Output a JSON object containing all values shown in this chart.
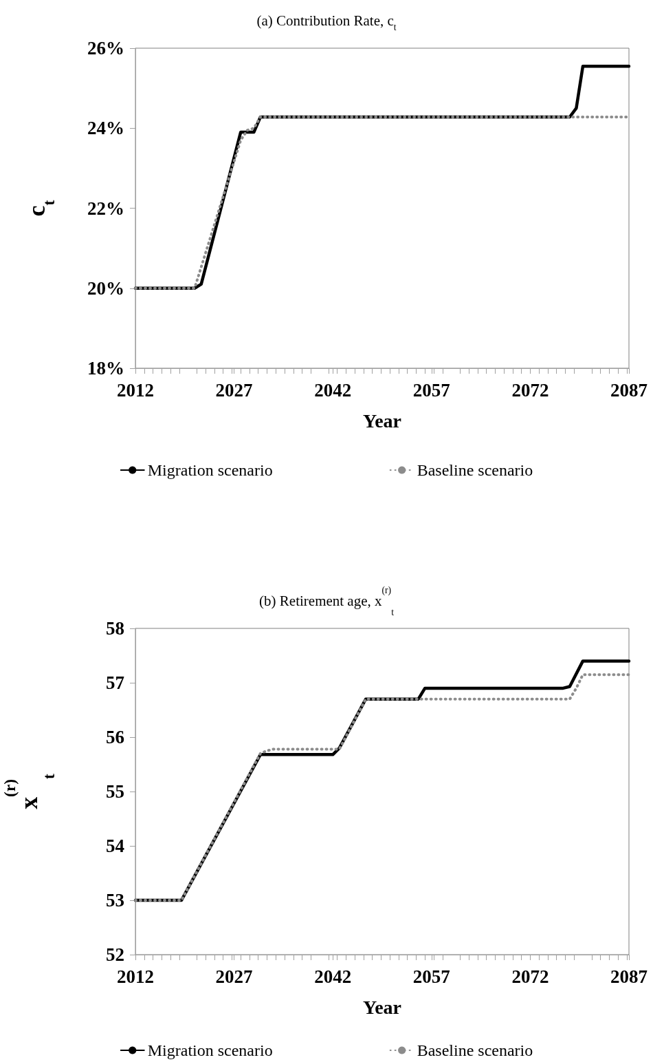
{
  "chart_data": [
    {
      "type": "line",
      "title": "(a) Contribution Rate, c$_{t}$",
      "xlabel": "Year",
      "ylabel": "c$_{t}$",
      "xlim": [
        2012,
        2087
      ],
      "xticks": [
        2012,
        2027,
        2042,
        2057,
        2072,
        2087
      ],
      "ylim": [
        18,
        26
      ],
      "yticks": [
        {
          "value": 18,
          "label": "18%"
        },
        {
          "value": 20,
          "label": "20%"
        },
        {
          "value": 22,
          "label": "22%"
        },
        {
          "value": 24,
          "label": "24%"
        },
        {
          "value": 26,
          "label": "26%"
        }
      ],
      "grid": false,
      "legend": "bottom",
      "marker": "none",
      "series": [
        {
          "name": "Migration scenario",
          "color": "#000000",
          "line_style": "solid",
          "x": [
            2012,
            2021,
            2022,
            2028,
            2030,
            2031,
            2078,
            2079,
            2080,
            2087
          ],
          "values": [
            20,
            20,
            20.1,
            23.9,
            23.9,
            24.28,
            24.28,
            24.5,
            25.55,
            25.55
          ]
        },
        {
          "name": "Baseline scenario",
          "color": "#8c8c8c",
          "line_style": "dotted",
          "x": [
            2012,
            2021,
            2028,
            2029,
            2030,
            2031,
            2087
          ],
          "values": [
            20,
            20,
            23.7,
            23.95,
            24.0,
            24.28,
            24.28
          ]
        }
      ]
    },
    {
      "type": "line",
      "title": "(b) Retirement age, x$^{(r)}$$_{t}$",
      "xlabel": "Year",
      "ylabel": "x$^{(r)}$$_{t}$",
      "xlim": [
        2012,
        2087
      ],
      "xticks": [
        2012,
        2027,
        2042,
        2057,
        2072,
        2087
      ],
      "ylim": [
        52,
        58
      ],
      "yticks": [
        52,
        53,
        54,
        55,
        56,
        57,
        58
      ],
      "grid": false,
      "legend": "bottom",
      "marker": "none",
      "series": [
        {
          "name": "Migration scenario",
          "color": "#000000",
          "line_style": "solid",
          "x": [
            2012,
            2019,
            2031,
            2042,
            2043,
            2047,
            2055,
            2056,
            2077,
            2078,
            2080,
            2087
          ],
          "values": [
            53,
            53,
            55.68,
            55.68,
            55.8,
            56.7,
            56.7,
            56.9,
            56.9,
            56.93,
            57.4,
            57.4
          ]
        },
        {
          "name": "Baseline scenario",
          "color": "#8c8c8c",
          "line_style": "dotted",
          "x": [
            2012,
            2019,
            2031,
            2032,
            2033,
            2043,
            2047,
            2078,
            2079,
            2080,
            2087
          ],
          "values": [
            53,
            53,
            55.7,
            55.75,
            55.78,
            55.78,
            56.7,
            56.7,
            56.9,
            57.15,
            57.15
          ]
        }
      ]
    }
  ]
}
